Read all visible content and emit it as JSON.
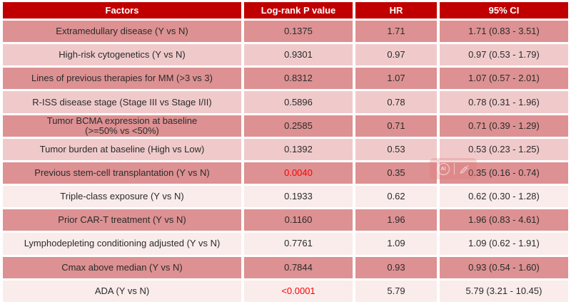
{
  "colors": {
    "header_bg": "#c00000",
    "header_text": "#ffffff",
    "row_dark": "#dd9192",
    "row_light": "#f0cacb",
    "row_lighter": "#f9eceb",
    "body_text": "#2b2b2b",
    "significant_p_text": "#fe0000"
  },
  "table": {
    "headers": [
      {
        "label": "Factors"
      },
      {
        "label": "Log-rank P value"
      },
      {
        "label": "HR"
      },
      {
        "label": "95% CI"
      }
    ],
    "rows": [
      {
        "factor": "Extramedullary disease (Y vs N)",
        "p_value": "0.1375",
        "p_highlight": false,
        "hr": "1.71",
        "ci": "1.71 (0.83 - 3.51)",
        "shade": "dark"
      },
      {
        "factor": "High-risk cytogenetics (Y vs N)",
        "p_value": "0.9301",
        "p_highlight": false,
        "hr": "0.97",
        "ci": "0.97 (0.53 - 1.79)",
        "shade": "light"
      },
      {
        "factor": "Lines of previous therapies for MM (>3 vs 3)",
        "p_value": "0.8312",
        "p_highlight": false,
        "hr": "1.07",
        "ci": "1.07 (0.57 - 2.01)",
        "shade": "dark"
      },
      {
        "factor": "R-ISS disease stage (Stage III vs Stage I/II)",
        "p_value": "0.5896",
        "p_highlight": false,
        "hr": "0.78",
        "ci": "0.78 (0.31 - 1.96)",
        "shade": "light"
      },
      {
        "factor": "Tumor BCMA expression at baseline\n(>=50% vs <50%)",
        "p_value": "0.2585",
        "p_highlight": false,
        "hr": "0.71",
        "ci": "0.71 (0.39 - 1.29)",
        "shade": "dark"
      },
      {
        "factor": "Tumor burden at baseline (High vs Low)",
        "p_value": "0.1392",
        "p_highlight": false,
        "hr": "0.53",
        "ci": "0.53 (0.23 - 1.25)",
        "shade": "light"
      },
      {
        "factor": "Previous stem-cell transplantation (Y vs N)",
        "p_value": "0.0040",
        "p_highlight": true,
        "hr": "0.35",
        "ci": "0.35 (0.16 - 0.74)",
        "shade": "dark"
      },
      {
        "factor": "Triple-class exposure (Y vs N)",
        "p_value": "0.1933",
        "p_highlight": false,
        "hr": "0.62",
        "ci": "0.62 (0.30 - 1.28)",
        "shade": "lighter"
      },
      {
        "factor": "Prior CAR-T treatment (Y vs N)",
        "p_value": "0.1160",
        "p_highlight": false,
        "hr": "1.96",
        "ci": "1.96 (0.83 - 4.61)",
        "shade": "dark"
      },
      {
        "factor": "Lymphodepleting conditioning adjusted (Y vs N)",
        "p_value": "0.7761",
        "p_highlight": false,
        "hr": "1.09",
        "ci": "1.09 (0.62 - 1.91)",
        "shade": "lighter"
      },
      {
        "factor": "Cmax above median (Y vs N)",
        "p_value": "0.7844",
        "p_highlight": false,
        "hr": "0.93",
        "ci": "0.93 (0.54 - 1.60)",
        "shade": "dark"
      },
      {
        "factor": "ADA (Y vs N)",
        "p_value": "<0.0001",
        "p_highlight": true,
        "hr": "5.79",
        "ci": "5.79 (3.21 - 10.45)",
        "shade": "lighter"
      }
    ]
  },
  "watermark": {
    "badge_label": "AI"
  }
}
